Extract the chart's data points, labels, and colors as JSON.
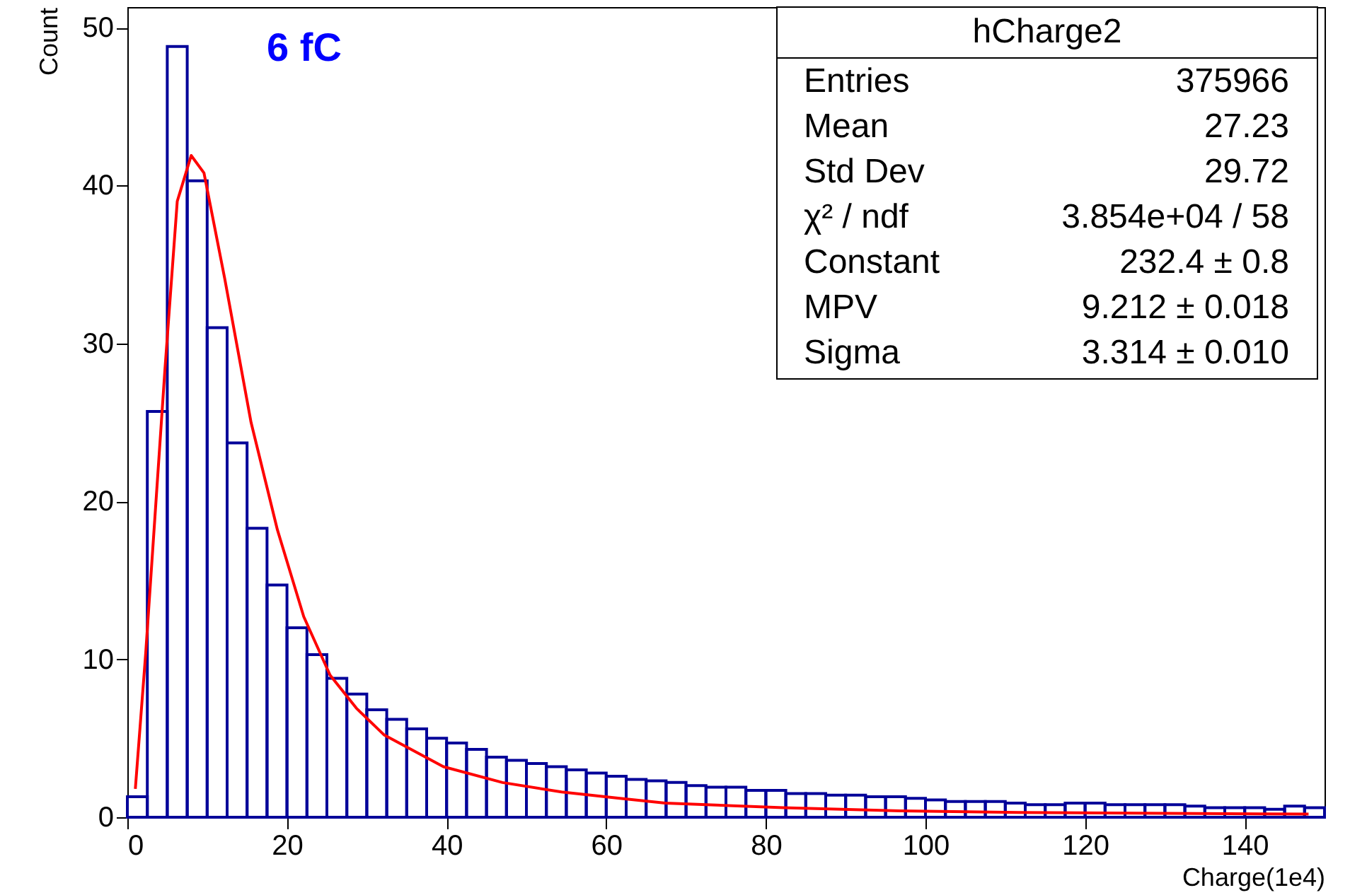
{
  "chart_data": {
    "type": "histogram",
    "xlabel": "Charge(1e4)",
    "ylabel": "Count",
    "xlim": [
      0,
      150
    ],
    "xticks": [
      0,
      20,
      40,
      60,
      80,
      100,
      120,
      140
    ],
    "ylim": [
      0,
      51.3
    ],
    "yticks": [
      0,
      10,
      20,
      30,
      40,
      50
    ],
    "annotations": [
      "6 fC",
      "hCharge2",
      "Entries",
      "375966",
      "Mean",
      "27.23",
      "Std Dev",
      "29.72",
      "χ² / ndf",
      "3.854e+04 / 58",
      "Constant",
      "232.4 ± 0.8",
      "MPV",
      "9.212 ± 0.018",
      "Sigma",
      "3.314 ± 0.010"
    ],
    "series": [
      {
        "color": "#000099",
        "bins": [
          0,
          2.5,
          5,
          7.5,
          10,
          12.5,
          15,
          17.5,
          20,
          22.5,
          25,
          27.5,
          30,
          32.5,
          35,
          37.5,
          40,
          42.5,
          45,
          47.5,
          50,
          52.5,
          55,
          57.5,
          60,
          62.5,
          65,
          67.5,
          70,
          72.5,
          75,
          77.5,
          80,
          82.5,
          85,
          87.5,
          90,
          92.5,
          95,
          97.5,
          100,
          102.5,
          105,
          107.5,
          110,
          112.5,
          115,
          117.5,
          120,
          122.5,
          125,
          127.5,
          130,
          132.5,
          135,
          137.5,
          140,
          142.5,
          145,
          147.5,
          150
        ],
        "values": [
          1.3,
          25.7,
          48.8,
          40.3,
          31.0,
          23.7,
          18.3,
          14.7,
          12.0,
          10.3,
          8.8,
          7.8,
          6.8,
          6.2,
          5.6,
          5.0,
          4.7,
          4.3,
          3.8,
          3.6,
          3.4,
          3.2,
          3.0,
          2.8,
          2.6,
          2.4,
          2.3,
          2.2,
          2.0,
          1.9,
          1.9,
          1.7,
          1.7,
          1.5,
          1.5,
          1.4,
          1.4,
          1.3,
          1.3,
          1.2,
          1.1,
          1.0,
          1.0,
          1.0,
          0.9,
          0.8,
          0.8,
          0.9,
          0.9,
          0.8,
          0.8,
          0.8,
          0.8,
          0.7,
          0.6,
          0.6,
          0.6,
          0.5,
          0.7,
          0.6
        ]
      },
      {
        "type": "line",
        "color": "#ff0000",
        "x": [
          1,
          2.3,
          4.7,
          6.25,
          8,
          9.6,
          12.2,
          15.5,
          18.8,
          22.1,
          25.4,
          28.7,
          32.2,
          39.6,
          47,
          54.4,
          61.7,
          67.4,
          82.2,
          97,
          111.7,
          148
        ],
        "values": [
          1.8,
          10.4,
          28.3,
          39.0,
          41.9,
          40.8,
          34.1,
          25.0,
          18.2,
          12.7,
          9.0,
          6.9,
          5.2,
          3.2,
          2.2,
          1.6,
          1.2,
          0.9,
          0.6,
          0.4,
          0.3,
          0.2
        ]
      }
    ]
  }
}
